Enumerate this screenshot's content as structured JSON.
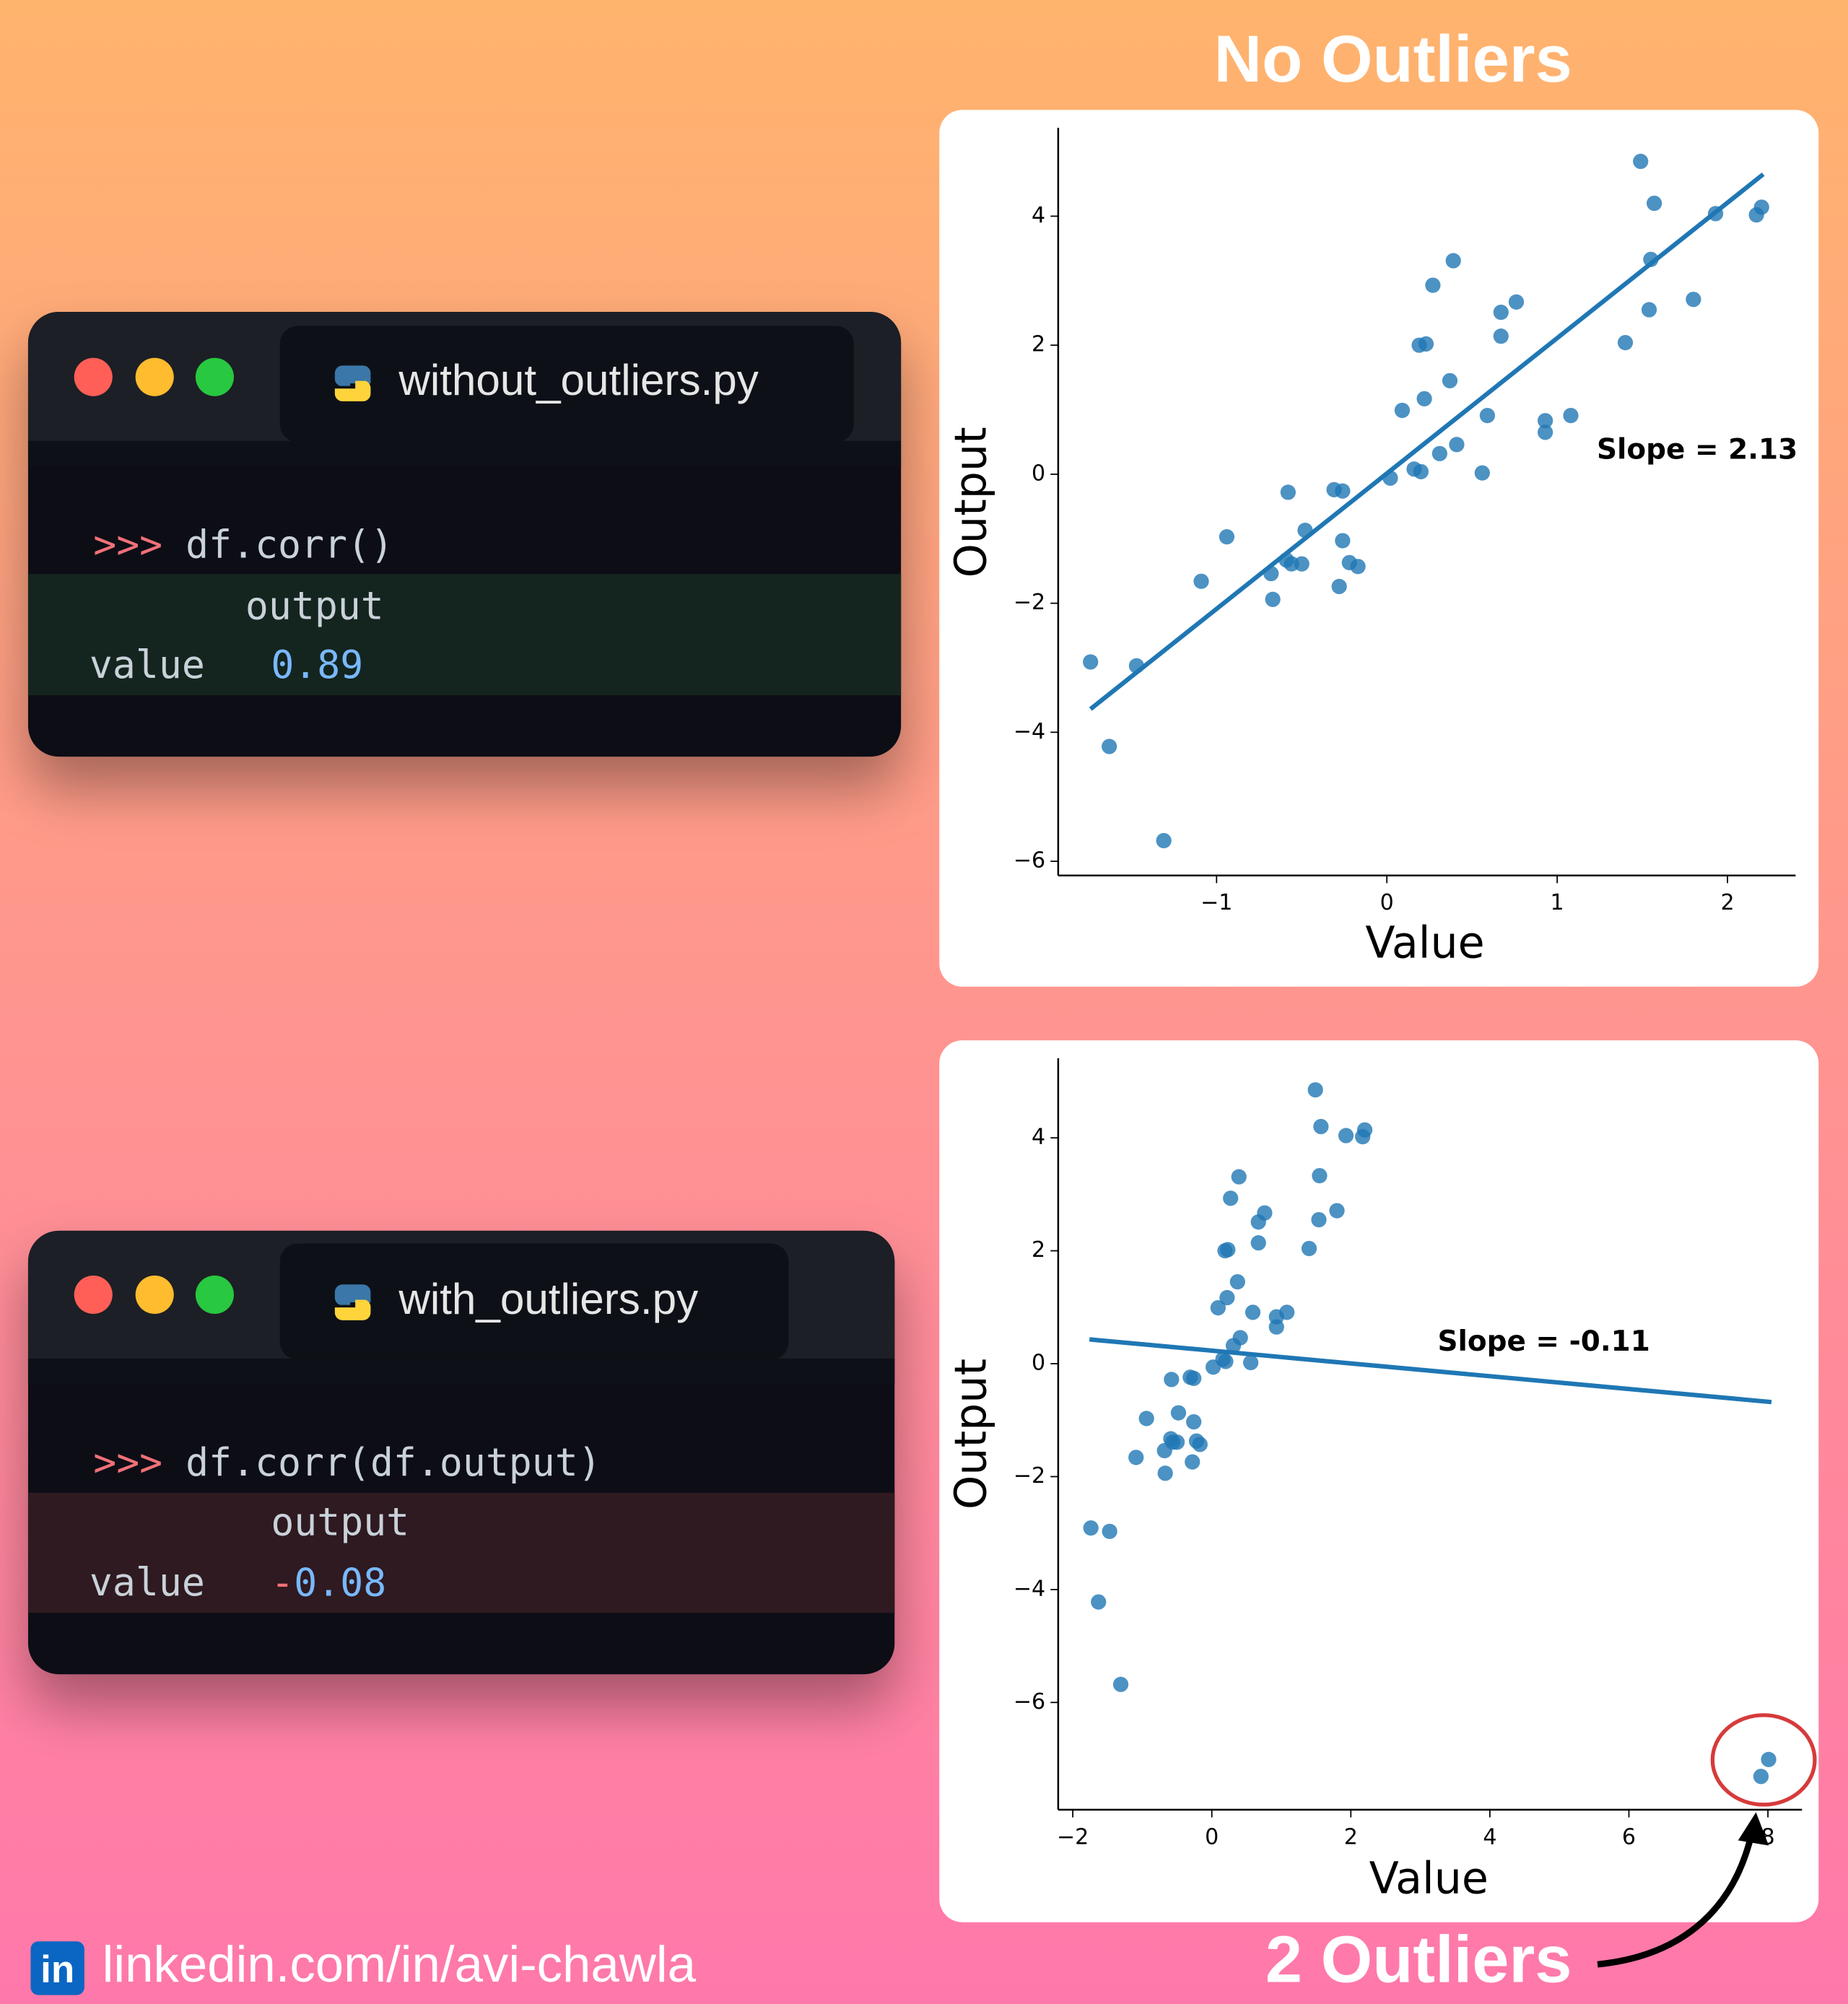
{
  "windows": [
    {
      "filename": "without_outliers.py",
      "prompt": ">>>",
      "code": "df.corr()",
      "column": "output",
      "row": "value",
      "value": "0.89"
    },
    {
      "filename": "with_outliers.py",
      "prompt": ">>>",
      "code": "df.corr(df.output)",
      "column": "output",
      "row": "value",
      "value_sign": "-",
      "value": "0.08"
    }
  ],
  "footer": "linkedin.com/in/avi-chawla",
  "chart_data": [
    {
      "type": "scatter",
      "title": "No Outliers",
      "xlabel": "Value",
      "ylabel": "Output",
      "color": "#1f77b4",
      "annotation": "Slope = 2.13",
      "x": [
        -1.74,
        -1.63,
        -1.47,
        -1.31,
        -1.09,
        -0.94,
        -0.68,
        -0.67,
        -0.59,
        -0.58,
        -0.56,
        -0.5,
        -0.48,
        -0.31,
        -0.26,
        -0.28,
        -0.26,
        -0.22,
        -0.17,
        0.02,
        0.09,
        0.16,
        0.2,
        0.19,
        0.23,
        0.22,
        0.27,
        0.31,
        0.37,
        0.39,
        0.41,
        0.56,
        0.59,
        0.67,
        0.67,
        0.76,
        0.93,
        0.93,
        1.08,
        1.4,
        1.49,
        1.54,
        1.55,
        1.57,
        1.8,
        1.93,
        2.17,
        2.2
      ],
      "y": [
        -2.91,
        -4.22,
        -2.97,
        -5.68,
        -1.66,
        -0.97,
        -1.54,
        -1.94,
        -1.33,
        -0.28,
        -1.39,
        -1.39,
        -0.87,
        -0.24,
        -0.26,
        -1.74,
        -1.03,
        -1.37,
        -1.43,
        -0.06,
        0.99,
        0.08,
        0.04,
        2.0,
        2.02,
        1.17,
        2.93,
        0.32,
        1.45,
        3.31,
        0.46,
        0.02,
        0.91,
        2.51,
        2.14,
        2.67,
        0.83,
        0.65,
        0.91,
        2.04,
        4.85,
        2.55,
        3.33,
        4.2,
        2.71,
        4.04,
        4.02,
        4.14
      ],
      "fit": {
        "x": [
          -1.74,
          2.21
        ],
        "y": [
          -3.64,
          4.65
        ]
      },
      "xlim": [
        -1.93,
        2.4
      ],
      "ylim": [
        -6.22,
        5.37
      ],
      "xticks": [
        {
          "value": -1,
          "label": "−1"
        },
        0,
        1,
        2
      ],
      "yticks": [
        {
          "value": -6,
          "label": "−6"
        },
        {
          "value": -4,
          "label": "−4"
        },
        {
          "value": -2,
          "label": "−2"
        },
        0,
        2,
        4
      ]
    },
    {
      "type": "scatter",
      "xlabel": "Value",
      "ylabel": "Output",
      "color": "#1f77b4",
      "annotation": "Slope = -0.11",
      "callout": "2 Outliers",
      "x": [
        -1.74,
        -1.63,
        -1.47,
        -1.31,
        -1.09,
        -0.94,
        -0.68,
        -0.67,
        -0.59,
        -0.58,
        -0.56,
        -0.5,
        -0.48,
        -0.31,
        -0.26,
        -0.28,
        -0.26,
        -0.22,
        -0.17,
        0.02,
        0.09,
        0.16,
        0.2,
        0.19,
        0.23,
        0.22,
        0.27,
        0.31,
        0.37,
        0.39,
        0.41,
        0.56,
        0.59,
        0.67,
        0.67,
        0.76,
        0.93,
        0.93,
        1.08,
        1.4,
        1.49,
        1.54,
        1.55,
        1.57,
        1.8,
        1.93,
        2.17,
        2.2,
        7.9,
        8.01
      ],
      "y": [
        -2.91,
        -4.22,
        -2.97,
        -5.68,
        -1.66,
        -0.97,
        -1.54,
        -1.94,
        -1.33,
        -0.28,
        -1.39,
        -1.39,
        -0.87,
        -0.24,
        -0.26,
        -1.74,
        -1.03,
        -1.37,
        -1.43,
        -0.06,
        0.99,
        0.08,
        0.04,
        2.0,
        2.02,
        1.17,
        2.93,
        0.32,
        1.45,
        3.31,
        0.46,
        0.02,
        0.91,
        2.51,
        2.14,
        2.67,
        0.83,
        0.65,
        0.91,
        2.04,
        4.85,
        2.55,
        3.33,
        4.2,
        2.71,
        4.04,
        4.02,
        4.14,
        -7.31,
        -7.01
      ],
      "fit": {
        "x": [
          -1.76,
          8.05
        ],
        "y": [
          0.43,
          -0.68
        ]
      },
      "xlim": [
        -2.21,
        8.49
      ],
      "ylim": [
        -7.9,
        5.41
      ],
      "xticks": [
        {
          "value": -2,
          "label": "−2"
        },
        0,
        2,
        4,
        6,
        8
      ],
      "yticks": [
        {
          "value": -6,
          "label": "−6"
        },
        {
          "value": -4,
          "label": "−4"
        },
        {
          "value": -2,
          "label": "−2"
        },
        0,
        2,
        4
      ]
    }
  ]
}
